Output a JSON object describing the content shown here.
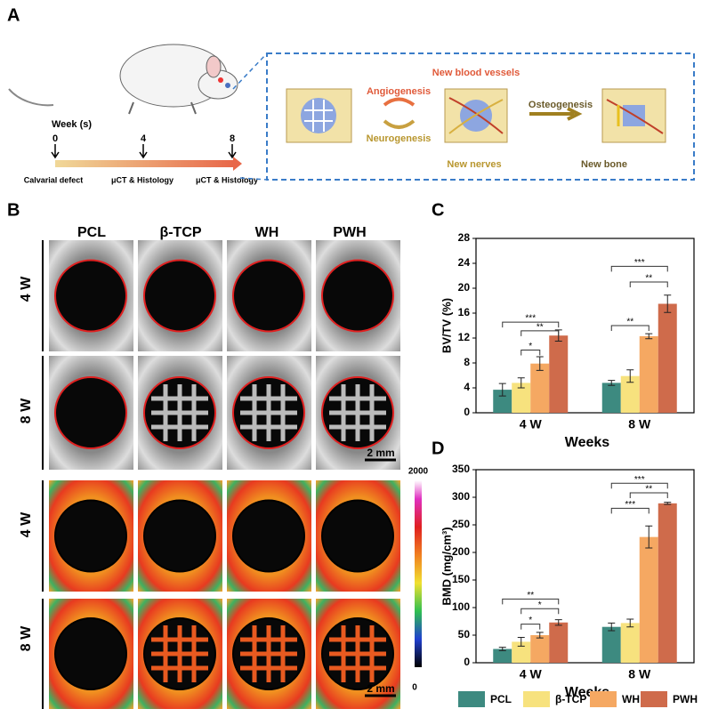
{
  "panel_a": {
    "label": "A",
    "timeline_title": "Week (s)",
    "weeks": [
      "0",
      "4",
      "8"
    ],
    "stages": [
      "Calvarial defect",
      "μCT & Histology",
      "μCT & Histology"
    ],
    "scheme": {
      "angiogenesis": "Angiogenesis",
      "neurogenesis": "Neurogenesis",
      "new_blood_vessels": "New blood vessels",
      "new_nerves": "New nerves",
      "osteogenesis": "Osteogenesis",
      "new_bone": "New bone"
    }
  },
  "panel_b": {
    "label": "B",
    "columns": [
      "PCL",
      "β-TCP",
      "WH",
      "PWH"
    ],
    "rows": [
      "4 W",
      "8 W",
      "4 W",
      "8 W"
    ],
    "scale_bar": "2 mm",
    "colorbar": {
      "max": 2000,
      "min": 0
    }
  },
  "chart_data": [
    {
      "type": "bar",
      "panel_label": "C",
      "y_label": "BV/TV (%)",
      "x_label": "Weeks",
      "categories": [
        "4 W",
        "8 W"
      ],
      "ylim": [
        0,
        28
      ],
      "yticks": [
        0,
        4,
        8,
        12,
        16,
        20,
        24,
        28
      ],
      "series": [
        {
          "name": "PCL",
          "color": "#3d8a80",
          "values": [
            3.7,
            4.8
          ],
          "errors": [
            1.0,
            0.4
          ]
        },
        {
          "name": "β-TCP",
          "color": "#f7e27e",
          "values": [
            4.8,
            5.9
          ],
          "errors": [
            0.8,
            1.0
          ]
        },
        {
          "name": "WH",
          "color": "#f5a862",
          "values": [
            7.9,
            12.3
          ],
          "errors": [
            1.1,
            0.4
          ]
        },
        {
          "name": "PWH",
          "color": "#cf6b4b",
          "values": [
            12.4,
            17.5
          ],
          "errors": [
            0.9,
            1.4
          ]
        }
      ],
      "annotations": [
        "***",
        "**",
        "*",
        "***",
        "**",
        "**"
      ]
    },
    {
      "type": "bar",
      "panel_label": "D",
      "y_label": "BMD (mg/cm³)",
      "x_label": "Weeks",
      "categories": [
        "4 W",
        "8 W"
      ],
      "ylim": [
        0,
        350
      ],
      "yticks": [
        0,
        50,
        100,
        150,
        200,
        250,
        300,
        350
      ],
      "series": [
        {
          "name": "PCL",
          "color": "#3d8a80",
          "values": [
            25,
            65
          ],
          "errors": [
            3,
            7
          ]
        },
        {
          "name": "β-TCP",
          "color": "#f7e27e",
          "values": [
            38,
            72
          ],
          "errors": [
            8,
            7
          ]
        },
        {
          "name": "WH",
          "color": "#f5a862",
          "values": [
            50,
            228
          ],
          "errors": [
            5,
            20
          ]
        },
        {
          "name": "PWH",
          "color": "#cf6b4b",
          "values": [
            73,
            289
          ],
          "errors": [
            5,
            2
          ]
        }
      ],
      "annotations": [
        "**",
        "*",
        "*",
        "***",
        "**",
        "***"
      ]
    }
  ]
}
